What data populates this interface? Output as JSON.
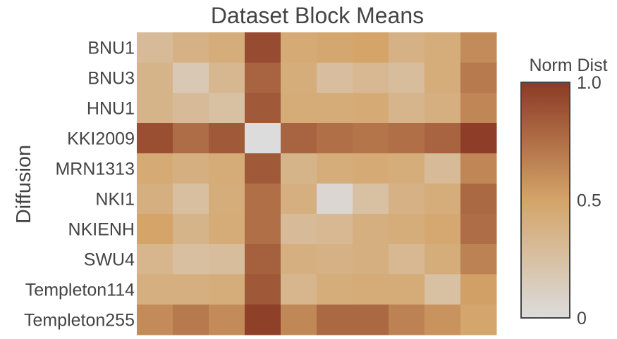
{
  "chart_data": {
    "type": "heatmap",
    "title": "Dataset Block Means",
    "ylabel": "Diffusion",
    "xlabel": "",
    "rows": [
      "BNU1",
      "BNU3",
      "HNU1",
      "KKI2009",
      "MRN1313",
      "NKI1",
      "NKIENH",
      "SWU4",
      "Templeton114",
      "Templeton255"
    ],
    "columns_labeled": false,
    "values": [
      [
        0.3,
        0.38,
        0.42,
        0.92,
        0.45,
        0.47,
        0.5,
        0.38,
        0.42,
        0.62
      ],
      [
        0.36,
        0.18,
        0.33,
        0.8,
        0.42,
        0.27,
        0.32,
        0.28,
        0.42,
        0.7
      ],
      [
        0.36,
        0.3,
        0.25,
        0.85,
        0.44,
        0.44,
        0.45,
        0.35,
        0.4,
        0.64
      ],
      [
        0.9,
        0.76,
        0.85,
        0.0,
        0.8,
        0.75,
        0.72,
        0.75,
        0.8,
        0.98
      ],
      [
        0.45,
        0.4,
        0.44,
        0.85,
        0.36,
        0.42,
        0.45,
        0.42,
        0.3,
        0.64
      ],
      [
        0.4,
        0.26,
        0.42,
        0.75,
        0.4,
        0.05,
        0.25,
        0.38,
        0.42,
        0.78
      ],
      [
        0.5,
        0.36,
        0.44,
        0.75,
        0.3,
        0.32,
        0.4,
        0.42,
        0.46,
        0.76
      ],
      [
        0.34,
        0.26,
        0.28,
        0.82,
        0.4,
        0.38,
        0.4,
        0.32,
        0.42,
        0.66
      ],
      [
        0.4,
        0.4,
        0.42,
        0.86,
        0.34,
        0.42,
        0.44,
        0.44,
        0.25,
        0.52
      ],
      [
        0.62,
        0.7,
        0.62,
        0.97,
        0.63,
        0.78,
        0.78,
        0.66,
        0.58,
        0.48
      ]
    ],
    "zmin": 0,
    "zmax": 1,
    "colorbar": {
      "title": "Norm Dist",
      "ticks": [
        "1.0",
        "0.5",
        "0"
      ],
      "tick_values": [
        1,
        0.5,
        0
      ]
    },
    "colorscale": [
      "#dcdcdc",
      "#d4a469",
      "#8b3a25"
    ],
    "colorscale_stops": [
      0,
      0.5,
      1
    ]
  }
}
